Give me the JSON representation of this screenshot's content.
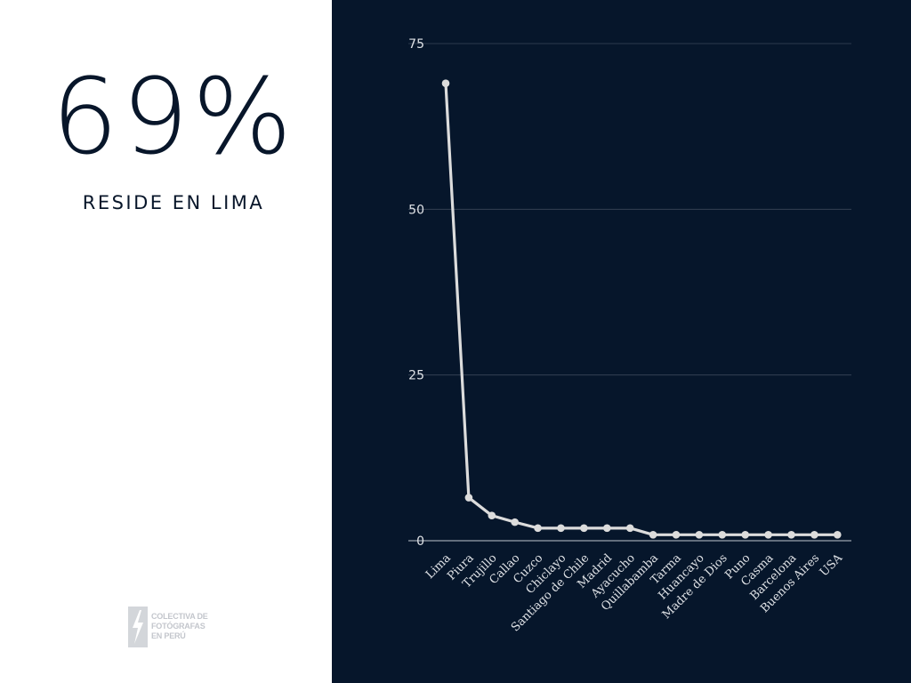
{
  "highlight": {
    "value": "69%",
    "caption": "RESIDE EN LIMA"
  },
  "logo": {
    "lines": [
      "COLECTIVA DE",
      "FOTÓGRAFAS",
      "EN PERÚ"
    ],
    "icon": "lightning-bolt-icon"
  },
  "colors": {
    "background_left": "#ffffff",
    "background_right": "#06162b",
    "text_dark": "#08162a",
    "line": "#dcdcdc",
    "grid": "#3a4659"
  },
  "chart_data": {
    "type": "line",
    "categories": [
      "Lima",
      "Piura",
      "Trujillo",
      "Callao",
      "Cuzco",
      "Chiclayo",
      "Santiago de Chile",
      "Madrid",
      "Ayacucho",
      "Quillabamba",
      "Tarma",
      "Huancayo",
      "Madre de Dios",
      "Puno",
      "Casma",
      "Barcelona",
      "Buenos Aires",
      "USA"
    ],
    "series": [
      {
        "values": [
          69,
          6.5,
          3.8,
          2.8,
          1.9,
          1.9,
          1.9,
          1.9,
          1.9,
          0.9,
          0.9,
          0.9,
          0.9,
          0.9,
          0.9,
          0.9,
          0.9,
          0.9
        ]
      }
    ],
    "ylim": [
      0,
      75
    ],
    "yticks": [
      "0",
      "25",
      "50",
      "75"
    ],
    "grid": true,
    "legend": "none"
  }
}
